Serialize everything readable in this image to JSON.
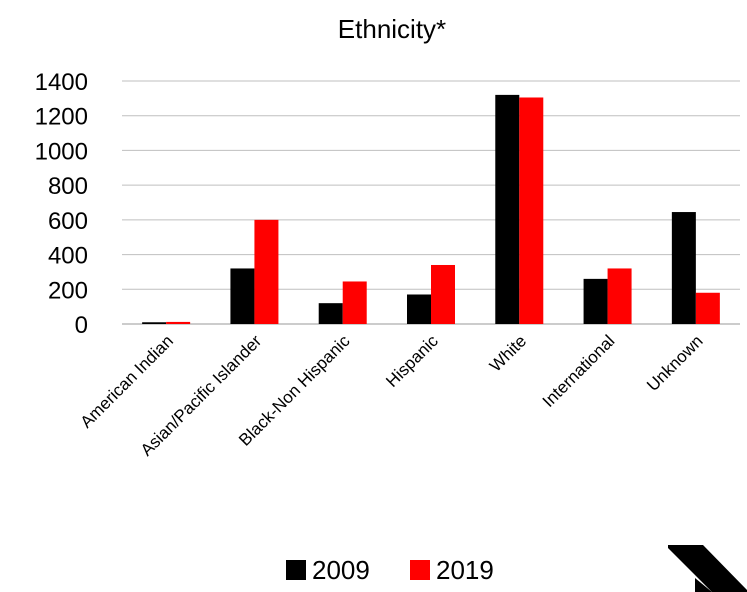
{
  "chart_data": {
    "type": "bar",
    "title": "Ethnicity*",
    "xlabel": "",
    "ylabel": "",
    "categories": [
      "American Indian",
      "Asian/Pacific Islander",
      "Black-Non Hispanic",
      "Hispanic",
      "White",
      "International",
      "Unknown"
    ],
    "series": [
      {
        "name": "2009",
        "color": "#000000",
        "values": [
          10,
          320,
          120,
          170,
          1320,
          260,
          645
        ]
      },
      {
        "name": "2019",
        "color": "#ff0000",
        "values": [
          12,
          600,
          245,
          340,
          1305,
          320,
          180
        ]
      }
    ],
    "ylim": [
      0,
      1400
    ],
    "yticks": [
      0,
      200,
      400,
      600,
      800,
      1000,
      1200,
      1400
    ],
    "grid": true,
    "legend_position": "bottom"
  },
  "colors": {
    "grid": "#bfbfbf",
    "axis": "#999999",
    "logo": "#000000"
  },
  "logo": {
    "icon": "diagonal-stripe-logo-icon"
  }
}
